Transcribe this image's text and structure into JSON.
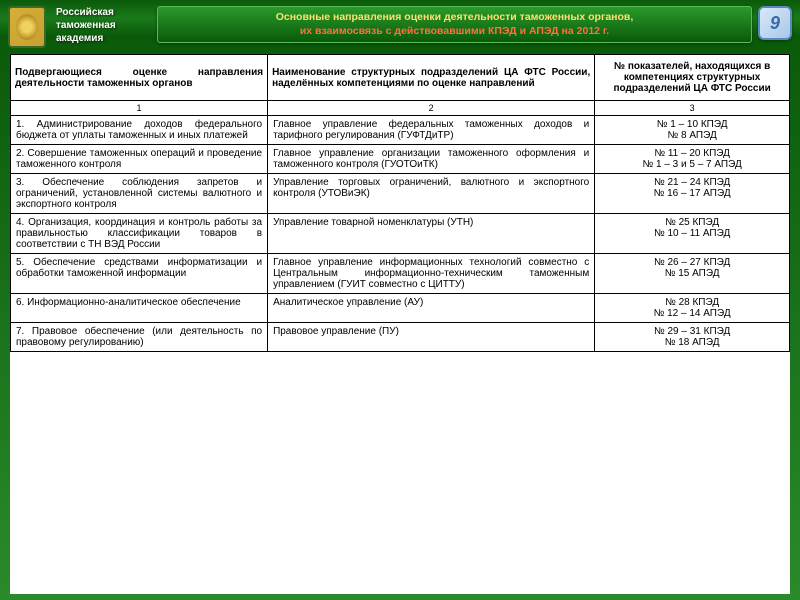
{
  "header": {
    "org_line1": "Российская",
    "org_line2": "таможенная",
    "org_line3": "академия",
    "title_line1": "Основные направления оценки деятельности таможенных органов,",
    "title_line2": "их взаимосвязь с действовавшими КПЭД и АПЭД на 2012 г.",
    "slide_number": "9"
  },
  "table": {
    "headers": {
      "col1": "Подвергающиеся оценке направления деятельности таможенных органов",
      "col2": "Наименование структурных подразделений ЦА ФТС России, наделённых компетенциями по оценке направлений",
      "col3": "№ показателей, находящихся в компетенциях структурных подразделений ЦА ФТС России"
    },
    "colnums": {
      "c1": "1",
      "c2": "2",
      "c3": "3"
    },
    "rows": [
      {
        "direction": "1. Администрирование доходов федерального бюджета от уплаты таможенных и иных платежей",
        "unit": "Главное управление федеральных таможенных доходов и тарифного регулирования (ГУФТДиТР)",
        "ind1": "№ 1 – 10 КПЭД",
        "ind2": "№ 8 АПЭД"
      },
      {
        "direction": "2. Совершение таможенных операций и проведение таможенного контроля",
        "unit": "Главное управление организации таможенного оформления и таможенного контроля (ГУОТОиТК)",
        "ind1": "№ 11 – 20 КПЭД",
        "ind2": "№ 1 – 3 и 5 – 7 АПЭД"
      },
      {
        "direction": "3. Обеспечение соблюдения запретов и ограничений, установленной системы валютного и экспортного контроля",
        "unit": "Управление торговых ограничений, валютного и экспортного контроля (УТОВиЭК)",
        "ind1": "№ 21 – 24 КПЭД",
        "ind2": "№ 16 – 17 АПЭД"
      },
      {
        "direction": "4. Организация, координация и контроль работы за правильностью классификации товаров в соответствии с ТН ВЭД России",
        "unit": "Управление товарной номенклатуры (УТН)",
        "ind1": "№ 25 КПЭД",
        "ind2": "№ 10 – 11 АПЭД"
      },
      {
        "direction": "5. Обеспечение средствами информатизации и обработки таможенной информации",
        "unit": "Главное управление информационных технологий совместно с Центральным информационно-техническим таможенным управлением (ГУИТ совместно с ЦИТТУ)",
        "ind1": "№ 26 – 27 КПЭД",
        "ind2": "№ 15 АПЭД"
      },
      {
        "direction": "6. Информационно-аналитическое обеспечение",
        "unit": "Аналитическое управление (АУ)",
        "ind1": "№ 28 КПЭД",
        "ind2": "№ 12 – 14 АПЭД"
      },
      {
        "direction": "7. Правовое обеспечение (или деятельность по правовому регулированию)",
        "unit": "Правовое управление (ПУ)",
        "ind1": "№ 29 – 31 КПЭД",
        "ind2": "№ 18 АПЭД"
      }
    ]
  },
  "style": {
    "bg_gradient_dark": "#0a5a0a",
    "bg_gradient_light": "#2a8a2a",
    "title_color1": "#ffe070",
    "title_color2": "#ff7040",
    "slidenum_bg": "#d8e8f8",
    "emblem_gold": "#d4af37",
    "table_border": "#000000",
    "font_size_header": 10,
    "font_size_body": 10
  }
}
